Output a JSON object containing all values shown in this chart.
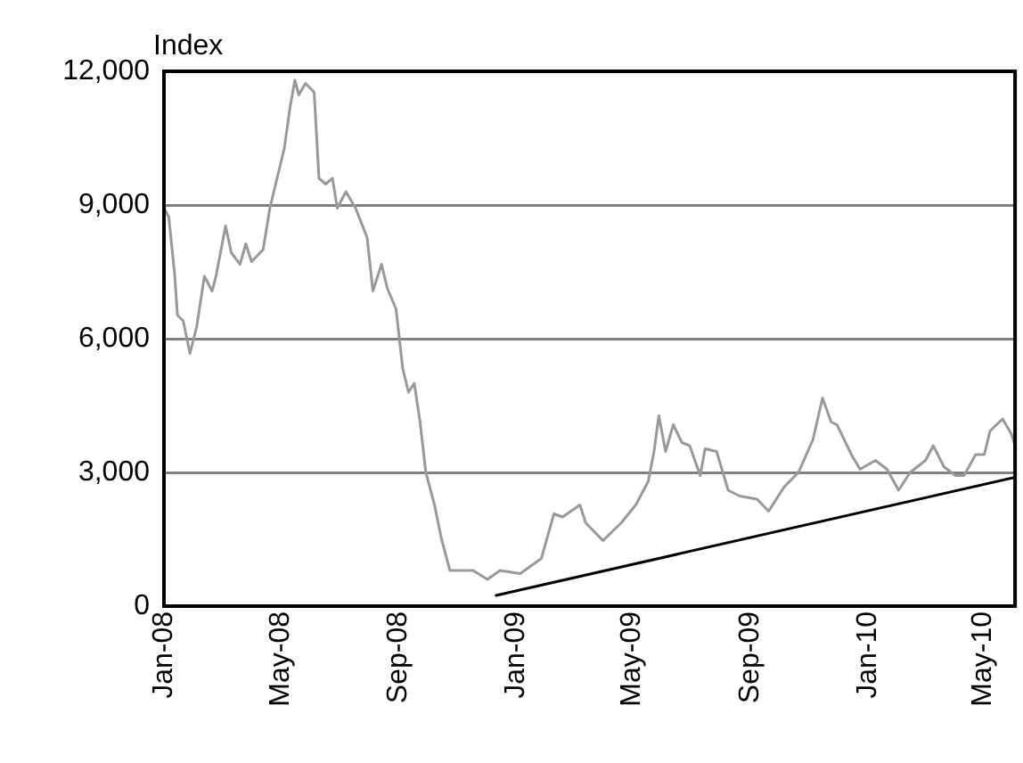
{
  "chart_data": {
    "type": "line",
    "ylabel": "Index",
    "xlim": [
      "2008-01-01",
      "2010-06-03"
    ],
    "ylim": [
      0,
      12000
    ],
    "xticks": [
      {
        "value": "2008-01-01",
        "label": "Jan-08"
      },
      {
        "value": "2008-05-01",
        "label": "May-08"
      },
      {
        "value": "2008-09-01",
        "label": "Sep-08"
      },
      {
        "value": "2009-01-01",
        "label": "Jan-09"
      },
      {
        "value": "2009-05-01",
        "label": "May-09"
      },
      {
        "value": "2009-09-01",
        "label": "Sep-09"
      },
      {
        "value": "2010-01-01",
        "label": "Jan-10"
      },
      {
        "value": "2010-05-01",
        "label": "May-10"
      }
    ],
    "yticks": [
      0,
      {
        "value": 3000,
        "label": "3,000"
      },
      {
        "value": 6000,
        "label": "6,000"
      },
      {
        "value": 9000,
        "label": "9,000"
      },
      {
        "value": 12000,
        "label": "12,000"
      }
    ],
    "grid": "y",
    "legend": false,
    "marker": "none",
    "line_style": "solid",
    "series": [
      {
        "color": "#999999",
        "x": [
          "2008-01-01",
          "2008-01-06",
          "2008-01-12",
          "2008-01-15",
          "2008-01-21",
          "2008-01-28",
          "2008-02-04",
          "2008-02-12",
          "2008-02-20",
          "2008-02-24",
          "2008-03-05",
          "2008-03-11",
          "2008-03-20",
          "2008-03-26",
          "2008-04-01",
          "2008-04-13",
          "2008-04-20",
          "2008-04-26",
          "2008-05-05",
          "2008-05-11",
          "2008-05-16",
          "2008-05-20",
          "2008-05-27",
          "2008-06-05",
          "2008-06-10",
          "2008-06-17",
          "2008-06-24",
          "2008-06-29",
          "2008-07-08",
          "2008-07-18",
          "2008-07-30",
          "2008-08-05",
          "2008-08-14",
          "2008-08-20",
          "2008-08-29",
          "2008-09-05",
          "2008-09-11",
          "2008-09-17",
          "2008-09-23",
          "2008-09-29",
          "2008-10-08",
          "2008-10-15",
          "2008-10-24",
          "2008-11-05",
          "2008-11-17",
          "2008-12-02",
          "2008-12-15",
          "2009-01-05",
          "2009-01-27",
          "2009-02-09",
          "2009-02-18",
          "2009-03-08",
          "2009-03-14",
          "2009-04-01",
          "2009-04-20",
          "2009-05-05",
          "2009-05-18",
          "2009-05-24",
          "2009-05-29",
          "2009-06-05",
          "2009-06-13",
          "2009-06-22",
          "2009-06-30",
          "2009-07-11",
          "2009-07-16",
          "2009-07-28",
          "2009-08-09",
          "2009-08-21",
          "2009-09-08",
          "2009-09-20",
          "2009-10-06",
          "2009-10-21",
          "2009-11-05",
          "2009-11-15",
          "2009-11-24",
          "2009-11-30",
          "2009-12-15",
          "2009-12-24",
          "2010-01-09",
          "2010-01-21",
          "2010-02-02",
          "2010-02-14",
          "2010-03-02",
          "2010-03-10",
          "2010-03-21",
          "2010-04-02",
          "2010-04-11",
          "2010-04-23",
          "2010-05-02",
          "2010-05-08",
          "2010-05-21",
          "2010-05-30",
          "2010-06-03"
        ],
        "values": [
          8930,
          8730,
          7470,
          6530,
          6400,
          5670,
          6270,
          7400,
          7070,
          7400,
          8530,
          7930,
          7670,
          8130,
          7730,
          8000,
          8930,
          9470,
          10270,
          11200,
          11800,
          11470,
          11730,
          11530,
          9600,
          9470,
          9600,
          8930,
          9300,
          8930,
          8270,
          7070,
          7670,
          7130,
          6670,
          5330,
          4800,
          5000,
          4130,
          3000,
          2270,
          1530,
          800,
          800,
          800,
          600,
          800,
          730,
          1070,
          2070,
          2000,
          2270,
          1870,
          1470,
          1870,
          2270,
          2800,
          3470,
          4270,
          3470,
          4070,
          3670,
          3600,
          2930,
          3530,
          3470,
          2600,
          2470,
          2400,
          2130,
          2670,
          3000,
          3730,
          4670,
          4130,
          4070,
          3400,
          3070,
          3270,
          3070,
          2600,
          3000,
          3270,
          3600,
          3130,
          2930,
          2930,
          3400,
          3400,
          3930,
          4200,
          3870,
          3600
        ]
      },
      {
        "type": "line",
        "color": "#000000",
        "x": [
          "2008-12-11",
          "2010-06-03"
        ],
        "values": [
          240,
          2890
        ]
      }
    ]
  }
}
